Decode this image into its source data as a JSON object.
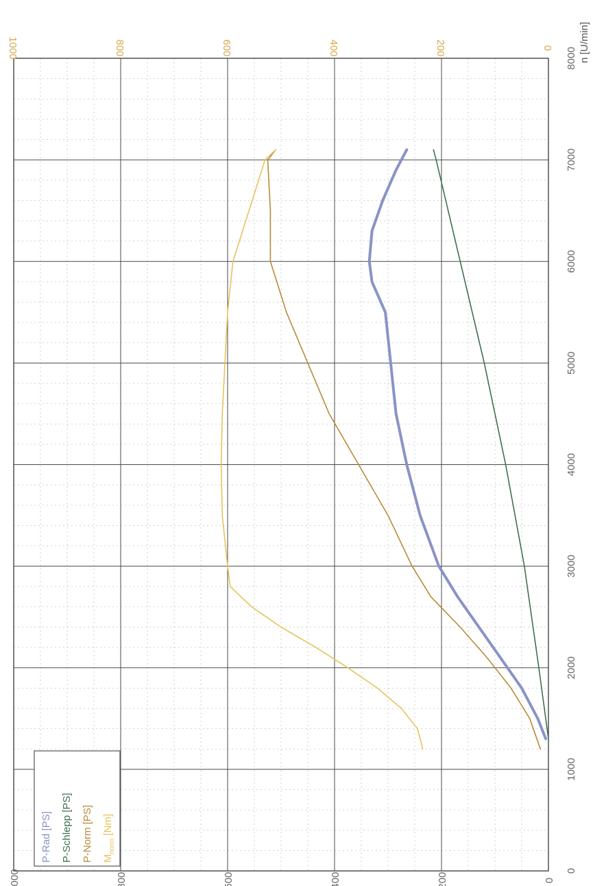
{
  "chart_data": {
    "type": "line",
    "orientation": "rotated-90",
    "xlabel": "n [U/min]",
    "xlim": [
      0,
      8000
    ],
    "x_ticks": [
      0,
      1000,
      2000,
      3000,
      4000,
      5000,
      6000,
      7000,
      8000
    ],
    "y_left_ticks": [
      0,
      200,
      400,
      600,
      800,
      1000
    ],
    "y_right_ticks": [
      0,
      200,
      400,
      600,
      800,
      1000
    ],
    "ylim": [
      0,
      1000
    ],
    "grid": true,
    "legend_position": "bottom-left",
    "colors": {
      "p_rad": "#8a93c4",
      "p_schlepp": "#3f6f50",
      "p_norm": "#b98a3a",
      "m_norm": "#e8c25a",
      "top_ticks": "#d8a84a"
    },
    "series": [
      {
        "key": "p_rad",
        "name": "P-Rad [PS]",
        "color": "#8a93c4",
        "width": 4,
        "x": [
          1300,
          1500,
          1800,
          2100,
          2400,
          2700,
          3000,
          3500,
          4000,
          4500,
          5000,
          5500,
          5800,
          6000,
          6300,
          6600,
          6900,
          7100
        ],
        "y": [
          5,
          20,
          50,
          90,
          130,
          170,
          205,
          240,
          265,
          285,
          295,
          305,
          330,
          335,
          330,
          310,
          285,
          265
        ]
      },
      {
        "key": "p_schlepp",
        "name": "P-Schlepp [PS]",
        "color": "#3f6f50",
        "width": 1.6,
        "x": [
          1300,
          2000,
          3000,
          4000,
          5000,
          6000,
          7000,
          7100
        ],
        "y": [
          0,
          18,
          45,
          80,
          120,
          165,
          210,
          215
        ]
      },
      {
        "key": "p_norm",
        "name": "P-Norm [PS]",
        "color": "#b98a3a",
        "width": 1.6,
        "x": [
          1200,
          1500,
          1800,
          2100,
          2400,
          2700,
          3000,
          3500,
          4000,
          4500,
          5000,
          5500,
          6000,
          6500,
          7000,
          7100
        ],
        "y": [
          15,
          35,
          70,
          115,
          165,
          220,
          255,
          300,
          355,
          410,
          450,
          490,
          520,
          520,
          525,
          510
        ]
      },
      {
        "key": "m_norm",
        "name": "M_norm [Nm]",
        "name_main": "M",
        "name_sub": "norm",
        "name_suffix": " [Nm]",
        "color": "#e8c25a",
        "width": 1.6,
        "x": [
          1200,
          1400,
          1600,
          1800,
          2000,
          2200,
          2400,
          2600,
          2800,
          3000,
          3500,
          4000,
          4500,
          5000,
          5500,
          6000,
          6500,
          7000,
          7100
        ],
        "y": [
          235,
          245,
          275,
          320,
          375,
          435,
          500,
          555,
          595,
          600,
          610,
          612,
          610,
          605,
          600,
          590,
          560,
          530,
          510
        ]
      }
    ]
  }
}
